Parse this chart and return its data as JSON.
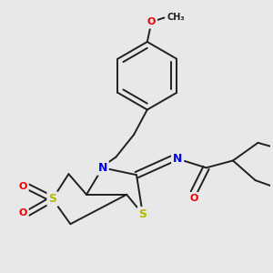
{
  "bg_color": "#e8e8e8",
  "bond_color": "#202020",
  "bond_width": 1.4,
  "atom_colors": {
    "S": "#b8b800",
    "N": "#0000ee",
    "O": "#ee0000",
    "C": "#202020"
  },
  "figsize": [
    3.0,
    3.0
  ],
  "dpi": 100
}
